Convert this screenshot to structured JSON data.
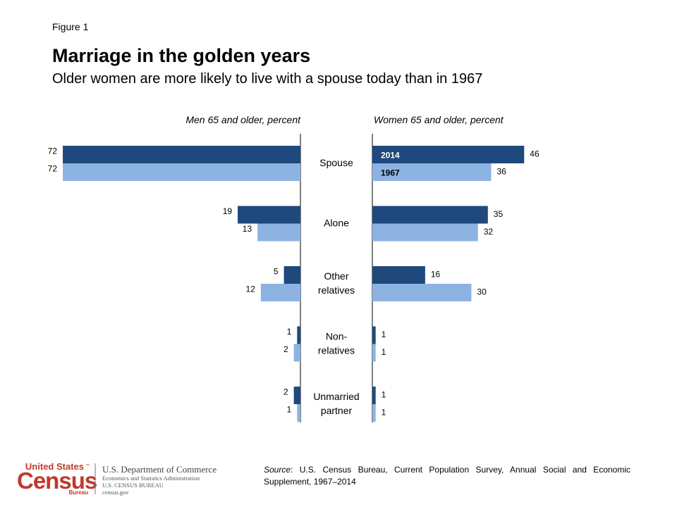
{
  "figure_label": "Figure 1",
  "title": "Marriage in the golden years",
  "subtitle": "Older women are more likely to live with a spouse today than in 1967",
  "chart_data": {
    "type": "bar",
    "orientation": "horizontal-butterfly",
    "categories": [
      "Spouse",
      "Alone",
      "Other relatives",
      "Non-relatives",
      "Unmarried partner"
    ],
    "category_display": [
      [
        "Spouse"
      ],
      [
        "Alone"
      ],
      [
        "Other",
        "relatives"
      ],
      [
        "Non-",
        "relatives"
      ],
      [
        "Unmarried",
        "partner"
      ]
    ],
    "panels": [
      {
        "label": "Men 65 and older, percent",
        "direction": "left",
        "series": [
          {
            "name": "2014",
            "color": "#1f497d",
            "values": [
              72,
              19,
              5,
              1,
              2
            ]
          },
          {
            "name": "1967",
            "color": "#8db3e2",
            "values": [
              72,
              13,
              12,
              2,
              1
            ]
          }
        ]
      },
      {
        "label": "Women 65 and older, percent",
        "direction": "right",
        "series": [
          {
            "name": "2014",
            "color": "#1f497d",
            "values": [
              46,
              35,
              16,
              1,
              1
            ]
          },
          {
            "name": "1967",
            "color": "#8db3e2",
            "values": [
              36,
              32,
              30,
              1,
              1
            ]
          }
        ]
      }
    ],
    "legend": {
      "placement": "inside-first-women-bars",
      "items": [
        "2014",
        "1967"
      ]
    },
    "grid": false
  },
  "footer": {
    "source_label": "Source",
    "source_text": ": U.S. Census Bureau, Current Population Survey, Annual Social and Economic Supplement, 1967–2014",
    "logo": {
      "top": "United States",
      "tm": "™",
      "census": "Census",
      "bureau": "Bureau",
      "dept": "U.S. Department of Commerce",
      "line1": "Economics and Statistics Administration",
      "line2": "U.S. CENSUS BUREAU",
      "line3": "census.gov"
    }
  }
}
